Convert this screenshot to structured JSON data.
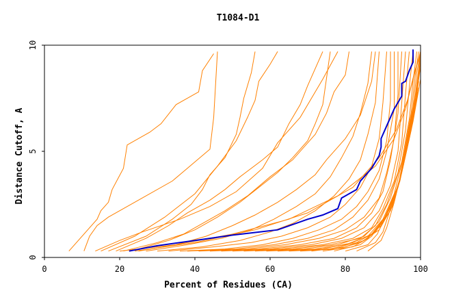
{
  "chart_data": {
    "type": "line",
    "title": "T1084-D1",
    "xlabel": "Percent of Residues (CA)",
    "ylabel": "Distance Cutoff, A",
    "xlim": [
      0,
      100
    ],
    "ylim": [
      0,
      10
    ],
    "x_ticks": [
      "0",
      "20",
      "40",
      "60",
      "80",
      "100"
    ],
    "y_ticks": [
      "0",
      "5",
      "10"
    ],
    "grid": false,
    "colors": {
      "series": "#ff8000",
      "highlight": "#0000cc",
      "axis": "#000000"
    },
    "highlight_series": {
      "x": [
        22.5,
        30,
        40,
        50,
        62,
        70,
        74,
        78,
        79,
        81,
        83,
        84,
        85,
        87,
        88,
        89,
        89.5,
        89.5,
        91,
        93,
        95,
        95,
        96,
        97,
        98,
        98
      ],
      "y": [
        0.3,
        0.55,
        0.8,
        1.05,
        1.3,
        1.8,
        2.0,
        2.3,
        2.8,
        3.0,
        3.2,
        3.6,
        3.8,
        4.2,
        4.5,
        4.8,
        5.2,
        5.6,
        6.2,
        7.0,
        7.6,
        8.2,
        8.3,
        8.8,
        9.2,
        9.8
      ]
    },
    "series": [
      {
        "x": [
          6.5,
          14,
          15,
          17,
          18,
          21,
          22,
          28,
          31,
          35,
          41,
          42,
          45
        ],
        "y": [
          0.3,
          1.8,
          2.2,
          2.6,
          3.2,
          4.2,
          5.3,
          5.9,
          6.3,
          7.2,
          7.8,
          8.8,
          9.6
        ]
      },
      {
        "x": [
          10.5,
          12,
          14,
          17,
          21,
          26,
          34,
          40,
          44,
          45,
          46
        ],
        "y": [
          0.3,
          1.0,
          1.5,
          1.9,
          2.3,
          2.8,
          3.6,
          4.5,
          5.1,
          6.6,
          9.7
        ]
      },
      {
        "x": [
          13.5,
          20,
          26,
          36,
          44,
          51,
          58,
          62,
          68,
          74,
          78
        ],
        "y": [
          0.3,
          0.8,
          1.2,
          1.8,
          2.4,
          3.1,
          4.2,
          5.4,
          6.6,
          8.4,
          9.7
        ]
      },
      {
        "x": [
          15,
          24,
          32,
          40,
          46,
          51,
          54,
          56,
          57,
          60,
          62
        ],
        "y": [
          0.3,
          1.0,
          1.9,
          3.0,
          4.3,
          5.5,
          6.6,
          7.4,
          8.3,
          9.1,
          9.7
        ]
      },
      {
        "x": [
          17,
          27,
          34,
          39,
          42,
          44,
          48,
          51,
          52,
          53,
          55,
          56
        ],
        "y": [
          0.3,
          1.0,
          1.8,
          2.5,
          3.2,
          3.9,
          4.7,
          5.8,
          6.6,
          7.5,
          8.7,
          9.7
        ]
      },
      {
        "x": [
          19,
          27,
          33,
          38,
          44,
          48,
          52,
          58,
          62,
          65,
          68,
          70,
          74
        ],
        "y": [
          0.3,
          0.9,
          1.5,
          2.1,
          2.7,
          3.2,
          3.8,
          4.6,
          5.2,
          6.3,
          7.2,
          8.1,
          9.7
        ]
      },
      {
        "x": [
          21,
          30,
          37,
          42,
          48,
          54,
          60,
          66,
          72,
          75,
          77,
          80,
          81
        ],
        "y": [
          0.3,
          0.7,
          1.1,
          1.6,
          2.2,
          2.9,
          3.8,
          4.6,
          5.8,
          6.8,
          7.8,
          8.6,
          9.7
        ]
      },
      {
        "x": [
          23,
          33,
          40,
          46,
          52,
          57,
          62,
          66,
          70,
          72,
          74,
          76
        ],
        "y": [
          0.3,
          0.8,
          1.3,
          1.9,
          2.6,
          3.3,
          4.0,
          4.7,
          5.5,
          6.3,
          7.2,
          9.7
        ]
      },
      {
        "x": [
          25,
          35,
          43,
          50,
          56,
          62,
          67,
          72,
          75,
          80,
          84,
          87,
          88
        ],
        "y": [
          0.3,
          0.6,
          1.0,
          1.5,
          2.0,
          2.6,
          3.2,
          3.9,
          4.6,
          5.6,
          6.7,
          8.3,
          9.7
        ]
      },
      {
        "x": [
          27,
          38,
          47,
          55,
          61,
          67,
          72,
          76,
          79,
          82,
          84,
          86,
          87
        ],
        "y": [
          0.3,
          0.6,
          0.9,
          1.3,
          1.8,
          2.4,
          3.0,
          3.8,
          4.7,
          5.7,
          6.8,
          8.2,
          9.7
        ]
      },
      {
        "x": [
          30,
          42,
          52,
          60,
          66,
          72,
          77,
          81,
          84,
          86,
          88,
          89
        ],
        "y": [
          0.3,
          0.5,
          0.8,
          1.2,
          1.6,
          2.2,
          2.9,
          3.7,
          4.6,
          5.8,
          7.3,
          9.7
        ]
      },
      {
        "x": [
          33,
          45,
          55,
          63,
          70,
          76,
          80,
          84,
          87,
          89,
          90,
          91
        ],
        "y": [
          0.3,
          0.5,
          0.7,
          1.0,
          1.4,
          1.9,
          2.5,
          3.3,
          4.3,
          5.6,
          7.3,
          9.7
        ]
      },
      {
        "x": [
          36,
          48,
          58,
          66,
          73,
          79,
          83,
          86,
          89,
          91,
          92,
          92
        ],
        "y": [
          0.3,
          0.4,
          0.6,
          0.9,
          1.3,
          1.8,
          2.4,
          3.1,
          4.1,
          5.5,
          7.4,
          9.7
        ]
      },
      {
        "x": [
          38,
          51,
          61,
          70,
          77,
          82,
          86,
          89,
          91,
          93,
          93
        ],
        "y": [
          0.3,
          0.4,
          0.6,
          0.9,
          1.3,
          1.9,
          2.7,
          3.7,
          5.0,
          7.0,
          9.7
        ]
      },
      {
        "x": [
          41,
          54,
          64,
          73,
          80,
          85,
          89,
          91,
          93,
          94,
          94
        ],
        "y": [
          0.3,
          0.4,
          0.6,
          0.9,
          1.3,
          1.9,
          2.8,
          4.0,
          5.6,
          7.7,
          9.7
        ]
      },
      {
        "x": [
          44,
          57,
          68,
          77,
          83,
          87,
          90,
          92,
          94,
          95
        ],
        "y": [
          0.3,
          0.4,
          0.6,
          0.9,
          1.4,
          2.1,
          3.1,
          4.6,
          6.8,
          9.7
        ]
      },
      {
        "x": [
          47,
          60,
          71,
          79,
          85,
          89,
          92,
          94,
          95,
          96
        ],
        "y": [
          0.3,
          0.4,
          0.6,
          0.9,
          1.4,
          2.2,
          3.4,
          5.0,
          7.3,
          9.7
        ]
      },
      {
        "x": [
          50,
          63,
          74,
          82,
          87,
          90,
          93,
          95,
          96,
          97
        ],
        "y": [
          0.3,
          0.4,
          0.6,
          0.9,
          1.4,
          2.3,
          3.6,
          5.4,
          7.7,
          9.7
        ]
      },
      {
        "x": [
          53,
          66,
          76,
          84,
          88,
          91,
          94,
          96,
          97,
          98
        ],
        "y": [
          0.3,
          0.4,
          0.6,
          0.9,
          1.5,
          2.5,
          4.0,
          6.0,
          8.0,
          9.7
        ]
      },
      {
        "x": [
          56,
          69,
          78,
          85,
          89,
          92,
          95,
          97,
          98,
          99
        ],
        "y": [
          0.3,
          0.4,
          0.6,
          1.0,
          1.7,
          2.8,
          4.5,
          6.5,
          8.3,
          9.7
        ]
      },
      {
        "x": [
          59,
          72,
          80,
          86,
          90,
          93,
          95.5,
          97.5,
          98.5,
          99.5
        ],
        "y": [
          0.3,
          0.4,
          0.6,
          1.0,
          1.8,
          3.0,
          4.8,
          6.8,
          8.5,
          9.7
        ]
      },
      {
        "x": [
          62,
          74,
          82,
          87,
          91,
          94,
          96,
          98,
          99,
          100
        ],
        "y": [
          0.3,
          0.4,
          0.7,
          1.1,
          2.0,
          3.3,
          5.2,
          7.1,
          8.7,
          9.7
        ]
      },
      {
        "x": [
          65,
          76,
          83,
          88,
          92,
          94.5,
          96.5,
          98.5,
          99.5,
          100
        ],
        "y": [
          0.3,
          0.4,
          0.7,
          1.2,
          2.2,
          3.6,
          5.6,
          7.5,
          8.9,
          9.7
        ]
      },
      {
        "x": [
          68,
          78,
          84,
          89,
          92.5,
          95,
          97,
          99,
          100
        ],
        "y": [
          0.3,
          0.4,
          0.7,
          1.3,
          2.4,
          4.0,
          6.0,
          7.9,
          9.5
        ]
      },
      {
        "x": [
          71,
          80,
          85,
          89.5,
          93,
          95.5,
          97.5,
          99.5
        ],
        "y": [
          0.3,
          0.5,
          0.8,
          1.5,
          2.7,
          4.4,
          6.4,
          8.3
        ]
      },
      {
        "x": [
          74,
          82,
          86,
          90,
          93.5,
          96,
          98,
          99.5
        ],
        "y": [
          0.3,
          0.5,
          0.9,
          1.7,
          3.0,
          4.8,
          6.8,
          8.6
        ]
      },
      {
        "x": [
          77,
          84,
          87,
          90.5,
          94,
          96.5,
          98.5,
          100
        ],
        "y": [
          0.3,
          0.6,
          1.0,
          1.9,
          3.3,
          5.2,
          7.2,
          9.0
        ]
      },
      {
        "x": [
          80,
          86,
          88.5,
          91,
          94.5,
          97,
          99,
          100
        ],
        "y": [
          0.3,
          0.6,
          1.1,
          2.1,
          3.6,
          5.6,
          7.6,
          9.3
        ]
      },
      {
        "x": [
          83,
          88,
          90,
          92,
          95,
          97.5,
          99.5
        ],
        "y": [
          0.3,
          0.7,
          1.2,
          2.3,
          4.0,
          6.0,
          8.0
        ]
      },
      {
        "x": [
          86,
          89.5,
          91,
          93,
          95.5,
          98,
          100
        ],
        "y": [
          0.3,
          0.8,
          1.4,
          2.6,
          4.4,
          6.4,
          8.4
        ]
      },
      {
        "x": [
          20,
          35,
          50,
          65,
          78,
          88,
          93,
          96,
          98,
          100
        ],
        "y": [
          0.3,
          0.6,
          1.1,
          1.8,
          2.9,
          4.3,
          5.6,
          7.0,
          8.4,
          9.7
        ]
      },
      {
        "x": [
          24,
          40,
          56,
          70,
          82,
          89,
          93.5,
          96.5,
          98.5,
          100
        ],
        "y": [
          0.3,
          0.7,
          1.3,
          2.1,
          3.3,
          4.7,
          6.0,
          7.4,
          8.8,
          9.6
        ]
      }
    ]
  }
}
